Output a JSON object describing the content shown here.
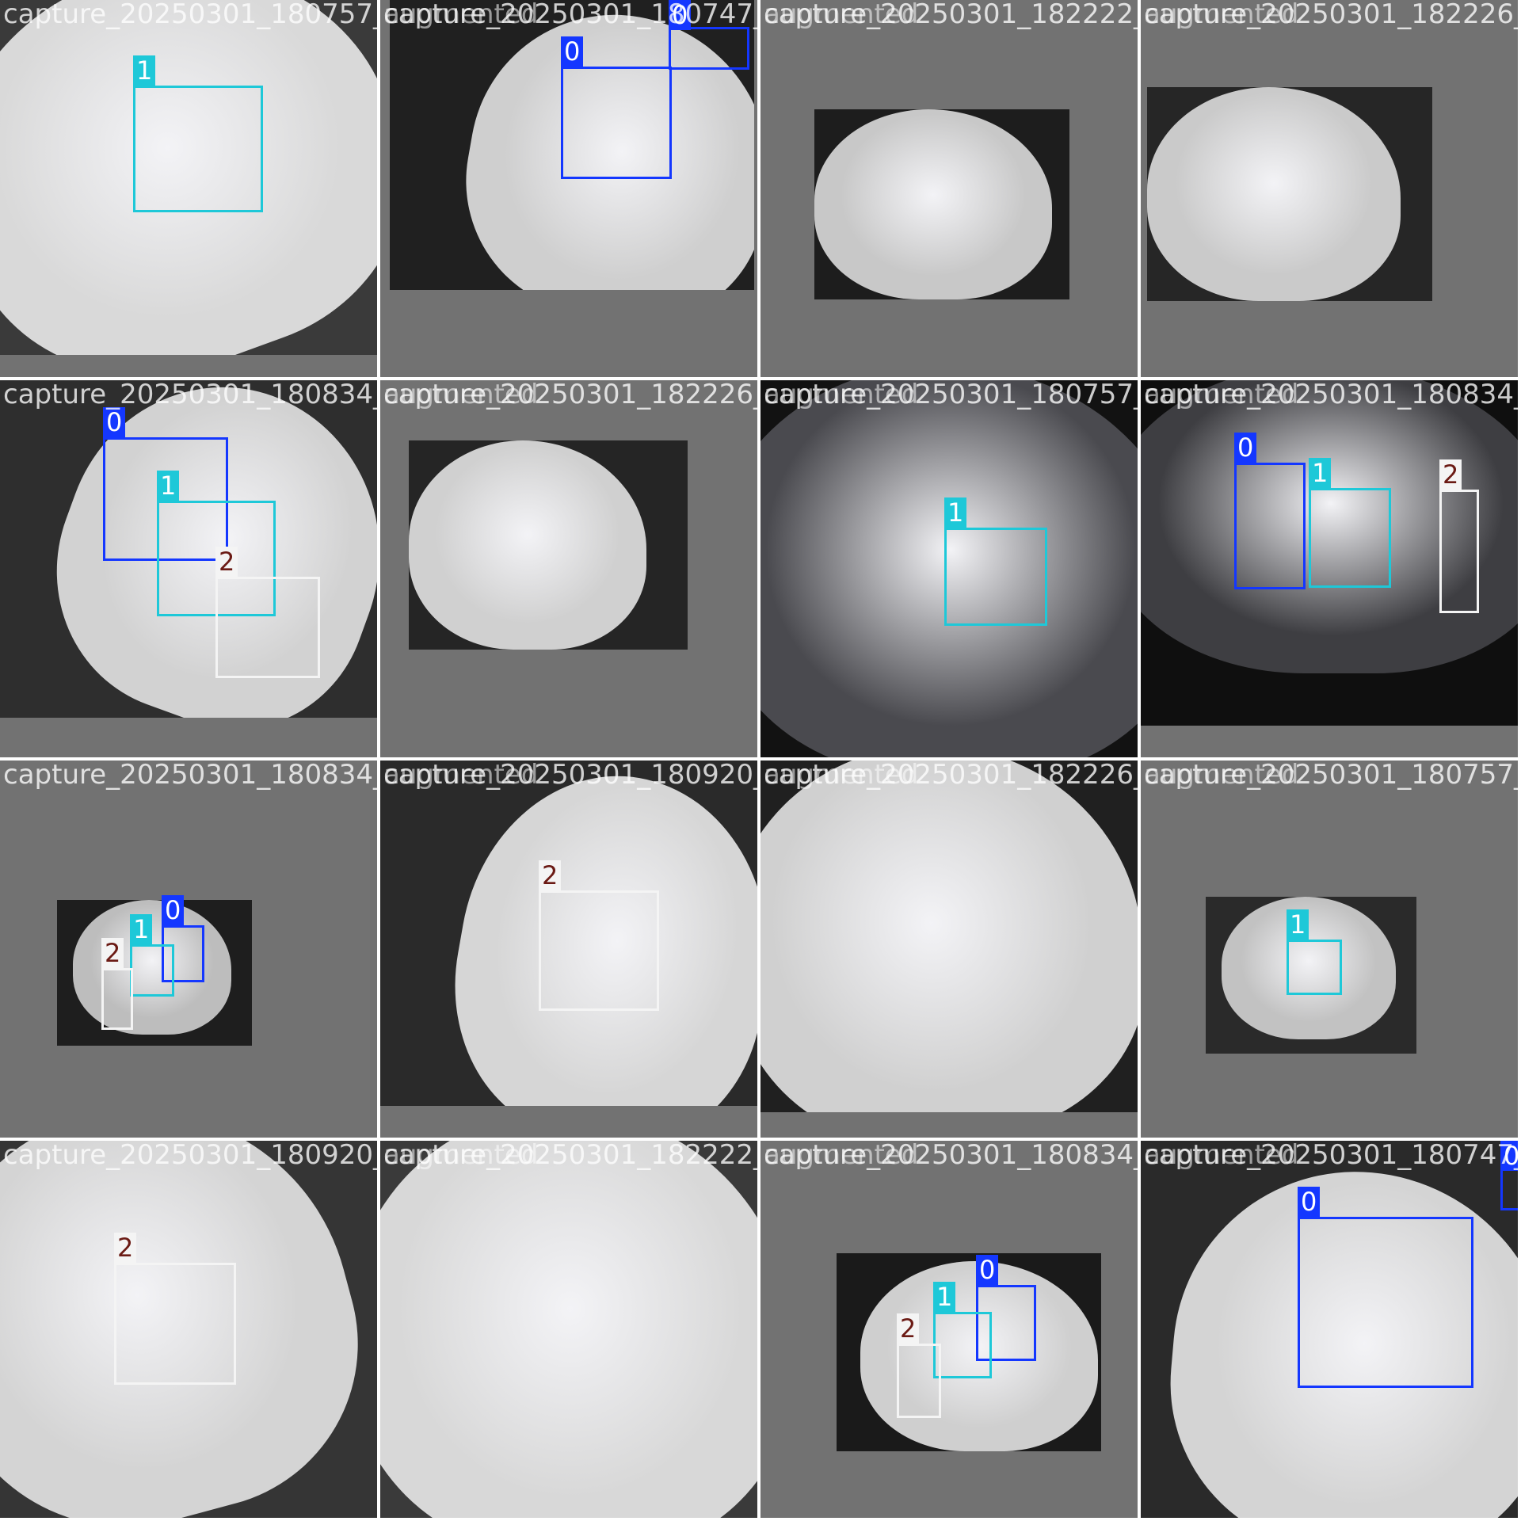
{
  "palette": {
    "0": {
      "box": "#1437ff",
      "text": "#ffffff"
    },
    "1": {
      "box": "#1ec8d8",
      "text": "#ffffff"
    },
    "2": {
      "box": "#f4f4f4",
      "text": "#6b1a14"
    }
  },
  "tiles": [
    {
      "titles": [
        "capture_20250301_180757_"
      ],
      "detections": [
        {
          "cls": "1"
        }
      ]
    },
    {
      "titles": [
        "capture_20250301_180747_",
        "augmented"
      ],
      "detections": [
        {
          "cls": "0"
        },
        {
          "cls": "0"
        }
      ]
    },
    {
      "titles": [
        "capture_20250301_182222_",
        "augmented"
      ],
      "detections": []
    },
    {
      "titles": [
        "capture_20250301_182226_",
        "augmented"
      ],
      "detections": []
    },
    {
      "titles": [
        "capture_20250301_180834_"
      ],
      "detections": [
        {
          "cls": "0"
        },
        {
          "cls": "1"
        },
        {
          "cls": "2"
        }
      ]
    },
    {
      "titles": [
        "capture_20250301_182226_",
        "augmented"
      ],
      "detections": []
    },
    {
      "titles": [
        "capture_20250301_180757_",
        "augmented"
      ],
      "detections": [
        {
          "cls": "1"
        }
      ]
    },
    {
      "titles": [
        "capture_20250301_180834_",
        "augmented"
      ],
      "detections": [
        {
          "cls": "0"
        },
        {
          "cls": "1"
        },
        {
          "cls": "2"
        }
      ]
    },
    {
      "titles": [
        "capture_20250301_180834_"
      ],
      "detections": [
        {
          "cls": "0"
        },
        {
          "cls": "1"
        },
        {
          "cls": "2"
        }
      ]
    },
    {
      "titles": [
        "capture_20250301_180920_",
        "augmented"
      ],
      "detections": [
        {
          "cls": "2"
        }
      ]
    },
    {
      "titles": [
        "capture_20250301_182226_",
        "augmented"
      ],
      "detections": []
    },
    {
      "titles": [
        "capture_20250301_180757_",
        "augmented"
      ],
      "detections": [
        {
          "cls": "1"
        }
      ]
    },
    {
      "titles": [
        "capture_20250301_180920_"
      ],
      "detections": [
        {
          "cls": "2"
        }
      ]
    },
    {
      "titles": [
        "capture_20250301_182222_",
        "augmented"
      ],
      "detections": []
    },
    {
      "titles": [
        "capture_20250301_180834_",
        "augmented"
      ],
      "detections": [
        {
          "cls": "0"
        },
        {
          "cls": "1"
        },
        {
          "cls": "2"
        }
      ]
    },
    {
      "titles": [
        "capture_20250301_180747_",
        "augmented"
      ],
      "detections": [
        {
          "cls": "0"
        },
        {
          "cls": "0"
        }
      ]
    }
  ]
}
